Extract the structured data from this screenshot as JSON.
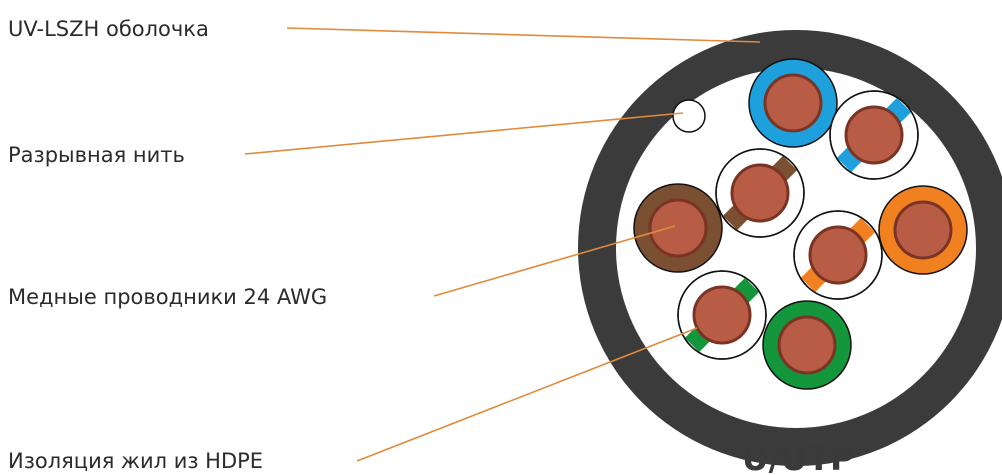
{
  "callouts": [
    {
      "text": "UV-LSZH оболочка"
    },
    {
      "text": "Разрывная нить"
    },
    {
      "text": "Медные проводники 24 AWG"
    },
    {
      "text": "Изоляция жил из HDPE"
    }
  ],
  "cable_type": "U/UTP",
  "colors": {
    "jacket": "#3c3b3b",
    "core_fill": "#ffffff",
    "copper": "#b85c46",
    "copper_shadow": "#7a3424",
    "blue": "#1ea0dc",
    "brown": "#7b4f32",
    "orange": "#f08020",
    "green": "#14963c",
    "leader": "#e08a3c",
    "outline": "#111111"
  }
}
